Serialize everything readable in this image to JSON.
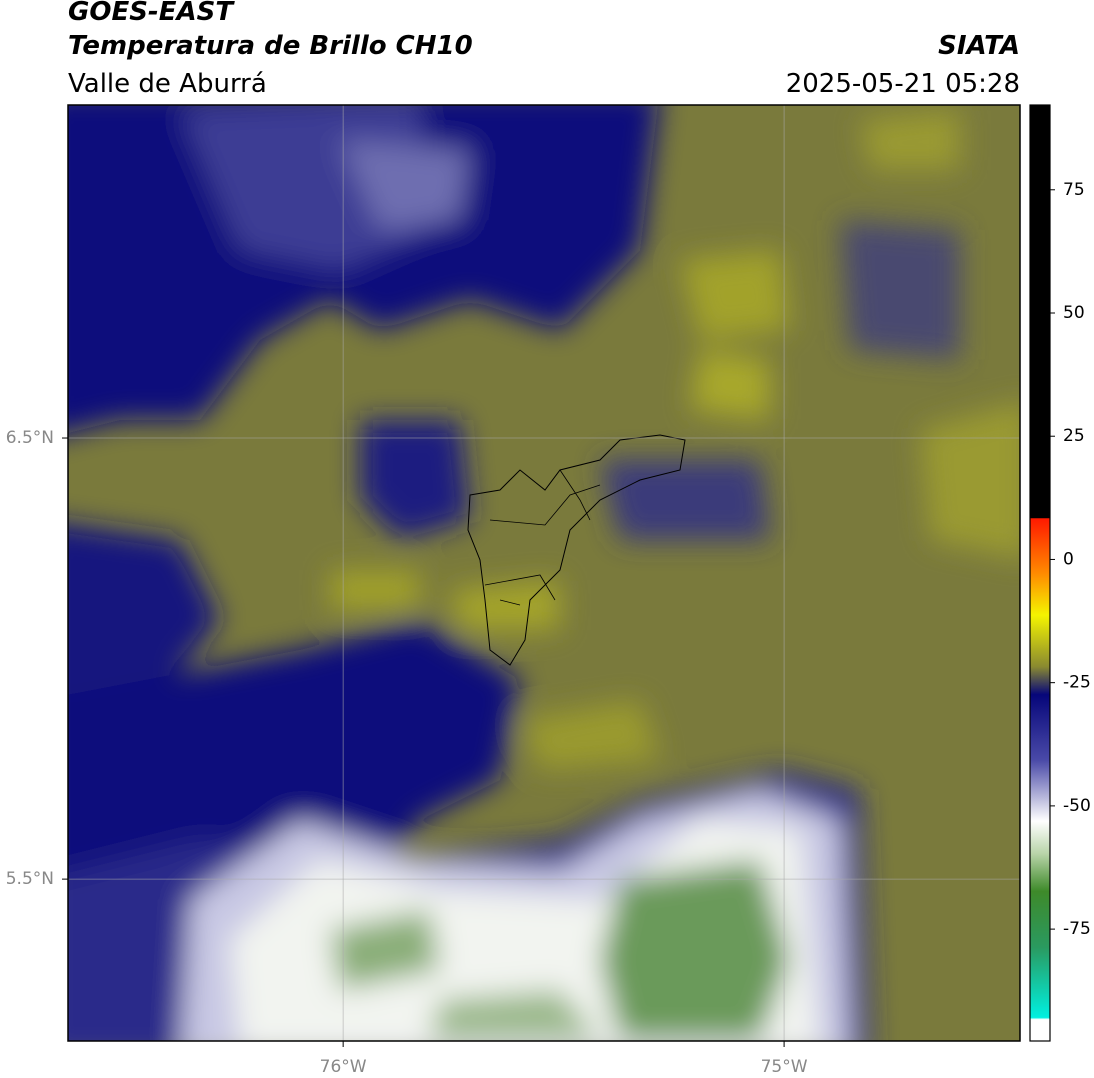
{
  "header": {
    "satellite": "GOES-EAST",
    "product": "Temperatura de Brillo CH10",
    "region": "Valle de Aburrá",
    "source": "SIATA",
    "datetime": "2025-05-21 05:28"
  },
  "map": {
    "xlim": [
      -76.624,
      -74.465
    ],
    "ylim": [
      5.133,
      7.255
    ],
    "xticks": [
      {
        "value": -76,
        "label": "76°W"
      },
      {
        "value": -75,
        "label": "75°W"
      }
    ],
    "yticks": [
      {
        "value": 5.5,
        "label": "5.5°N"
      },
      {
        "value": 6.5,
        "label": "6.5°N"
      }
    ],
    "grid": true
  },
  "colorbar": {
    "lim": [
      -97.7,
      92.2
    ],
    "ticks": [
      75,
      50,
      25,
      0,
      -25,
      -50,
      -75
    ]
  }
}
